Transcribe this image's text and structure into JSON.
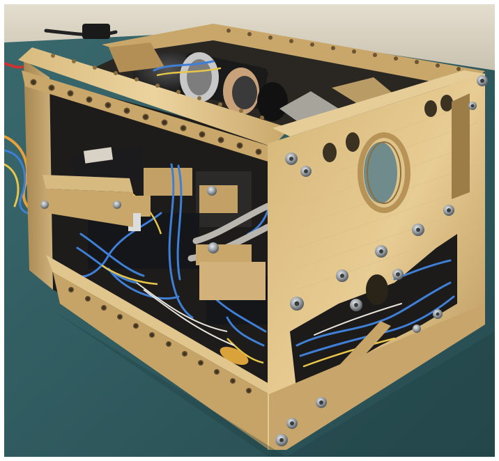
{
  "image": {
    "subject": "",
    "colors": {
      "background_wall": "#d9d2c2",
      "table_surface": "#2f5a5f",
      "brass_light": "#e2c589",
      "brass_mid": "#c9a76a",
      "brass_dark": "#8a6e3e",
      "cable_blue": "#3f7fd6",
      "cable_yellow": "#e8c64a",
      "ribbon_gray": "#b9b6b0",
      "pcb_black": "#1b1b1e",
      "screw_steel": "#9aa0a4"
    }
  }
}
